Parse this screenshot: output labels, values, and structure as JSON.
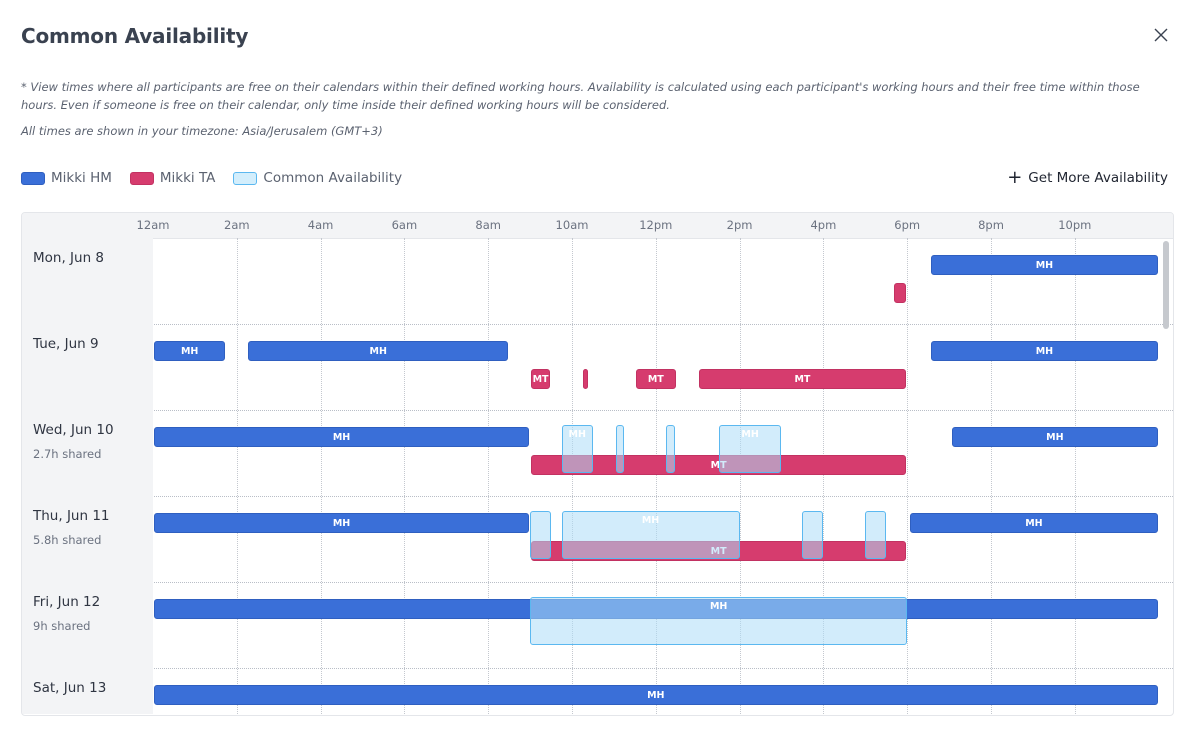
{
  "dialog": {
    "title": "Common Availability",
    "description": "* View times where all participants are free on their calendars within their defined working hours. Availability is calculated using each participant's working hours and their free time within those hours. Even if someone is free on their calendar, only time inside their defined working hours will be considered.",
    "timezone_note": "All times are shown in your timezone: Asia/Jerusalem (GMT+3)"
  },
  "legend": {
    "mh_label": "Mikki HM",
    "mt_label": "Mikki TA",
    "common_label": "Common Availability"
  },
  "actions": {
    "get_more_label": "Get More Availability"
  },
  "colors": {
    "mh": "#3a6fd8",
    "mt": "#d63c6e",
    "common": "#adddf7",
    "common_border": "#5bb8f0"
  },
  "hours": [
    "12am",
    "2am",
    "4am",
    "6am",
    "8am",
    "10am",
    "12pm",
    "2pm",
    "4pm",
    "6pm",
    "8pm",
    "10pm"
  ],
  "days": [
    {
      "label": "Mon, Jun 8",
      "shared": "",
      "mh": [
        {
          "start": 18.55,
          "end": 24,
          "text": "MH"
        }
      ],
      "mt": [
        {
          "start": 17.65,
          "end": 18.0,
          "text": "MT"
        }
      ],
      "common": []
    },
    {
      "label": "Tue, Jun 9",
      "shared": "",
      "mh": [
        {
          "start": 0,
          "end": 1.75,
          "text": "MH"
        },
        {
          "start": 2.25,
          "end": 8.5,
          "text": "MH"
        },
        {
          "start": 18.55,
          "end": 24,
          "text": "MH"
        }
      ],
      "mt": [
        {
          "start": 9.0,
          "end": 9.5,
          "text": "MT"
        },
        {
          "start": 10.25,
          "end": 10.4,
          "text": "MT"
        },
        {
          "start": 11.5,
          "end": 12.5,
          "text": "MT"
        },
        {
          "start": 13.0,
          "end": 18.0,
          "text": "MT"
        }
      ],
      "common": []
    },
    {
      "label": "Wed, Jun 10",
      "shared": "2.7h shared",
      "mh": [
        {
          "start": 0,
          "end": 9.0,
          "text": "MH"
        },
        {
          "start": 19.05,
          "end": 24,
          "text": "MH"
        }
      ],
      "mt": [
        {
          "start": 9.0,
          "end": 18.0,
          "text": "MT"
        }
      ],
      "common": [
        {
          "start": 9.75,
          "end": 10.5,
          "text": "MH"
        },
        {
          "start": 11.05,
          "end": 11.25,
          "text": "MH"
        },
        {
          "start": 12.25,
          "end": 12.45,
          "text": "MH"
        },
        {
          "start": 13.5,
          "end": 15.0,
          "text": "MH"
        }
      ]
    },
    {
      "label": "Thu, Jun 11",
      "shared": "5.8h shared",
      "mh": [
        {
          "start": 0,
          "end": 9.0,
          "text": "MH"
        },
        {
          "start": 18.05,
          "end": 24,
          "text": "MH"
        }
      ],
      "mt": [
        {
          "start": 9.0,
          "end": 18.0,
          "text": "MT"
        }
      ],
      "common": [
        {
          "start": 9.0,
          "end": 9.5,
          "text": "MH"
        },
        {
          "start": 9.75,
          "end": 14.0,
          "text": "MH"
        },
        {
          "start": 15.5,
          "end": 16.0,
          "text": "MH"
        },
        {
          "start": 17.0,
          "end": 17.5,
          "text": "MH"
        }
      ]
    },
    {
      "label": "Fri, Jun 12",
      "shared": "9h shared",
      "mh": [
        {
          "start": 0,
          "end": 24,
          "text": ""
        }
      ],
      "mt": [],
      "common": [
        {
          "start": 9.0,
          "end": 18.0,
          "text": "MH"
        }
      ]
    },
    {
      "label": "Sat, Jun 13",
      "shared": "",
      "mh": [
        {
          "start": 0,
          "end": 24,
          "text": "MH"
        }
      ],
      "mt": [],
      "common": []
    }
  ]
}
